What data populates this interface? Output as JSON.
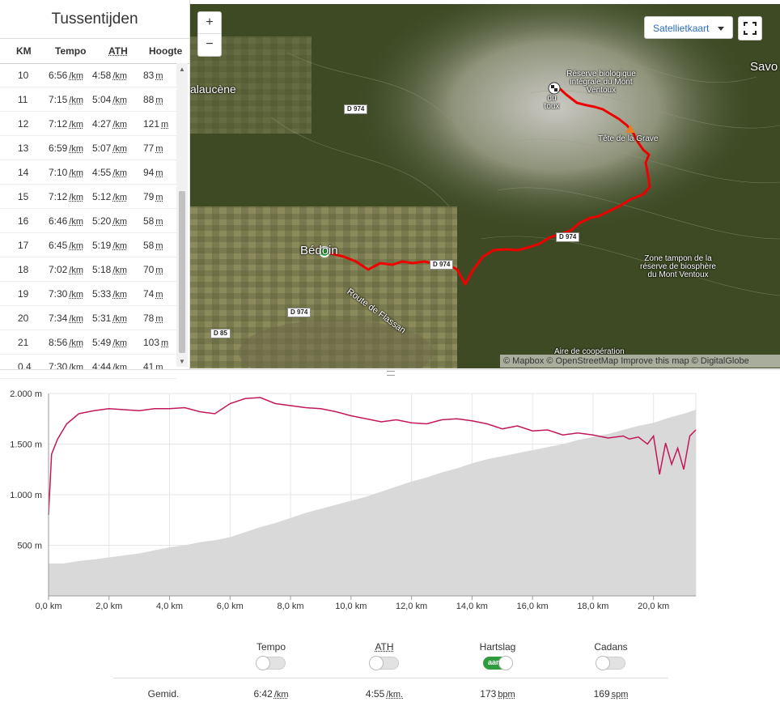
{
  "splits": {
    "title": "Tussentijden",
    "headers": {
      "km": "KM",
      "tempo": "Tempo",
      "ath": "ATH",
      "hoogte": "Hoogte"
    },
    "rows": [
      {
        "km": "10",
        "tempo": "6:56",
        "ath": "4:58",
        "hoogte": "83"
      },
      {
        "km": "11",
        "tempo": "7:15",
        "ath": "5:04",
        "hoogte": "88"
      },
      {
        "km": "12",
        "tempo": "7:12",
        "ath": "4:27",
        "hoogte": "121"
      },
      {
        "km": "13",
        "tempo": "6:59",
        "ath": "5:07",
        "hoogte": "77"
      },
      {
        "km": "14",
        "tempo": "7:10",
        "ath": "4:55",
        "hoogte": "94"
      },
      {
        "km": "15",
        "tempo": "7:12",
        "ath": "5:12",
        "hoogte": "79"
      },
      {
        "km": "16",
        "tempo": "6:46",
        "ath": "5:20",
        "hoogte": "58"
      },
      {
        "km": "17",
        "tempo": "6:45",
        "ath": "5:19",
        "hoogte": "58"
      },
      {
        "km": "18",
        "tempo": "7:02",
        "ath": "5:18",
        "hoogte": "70"
      },
      {
        "km": "19",
        "tempo": "7:30",
        "ath": "5:33",
        "hoogte": "74"
      },
      {
        "km": "20",
        "tempo": "7:34",
        "ath": "5:31",
        "hoogte": "78"
      },
      {
        "km": "21",
        "tempo": "8:56",
        "ath": "5:49",
        "hoogte": "103"
      },
      {
        "km": "0,4",
        "tempo": "7:30",
        "ath": "4:44",
        "hoogte": "41"
      }
    ],
    "pace_unit": "/km",
    "height_unit": "m"
  },
  "map": {
    "zoom_in": "+",
    "zoom_out": "−",
    "layer_label": "Satellietkaart",
    "attribution": "© Mapbox © OpenStreetMap Improve this map © DigitalGlobe",
    "places": {
      "malaucene": "alaucène",
      "bedoin": "Bédoin",
      "savoillan": "Savo",
      "reserve_biologique": "Réserve biologique intégrale du Mont Ventoux",
      "tete_grave": "Tête de la Grave",
      "zone_tampon": "Zone tampon de la réserve de biosphère du Mont Ventoux",
      "route_flassan": "Route de Flassan",
      "aire_cooperation": "Aire de coopération",
      "du_toux": "du toux"
    },
    "roads": [
      "D 974",
      "D 974",
      "D 974",
      "D 974",
      "D 85"
    ]
  },
  "chart_data": {
    "type": "line",
    "xlabel": "",
    "ylabel": "",
    "xlim": [
      0,
      21.4
    ],
    "ylim": [
      0,
      2000
    ],
    "x_ticks": [
      "0,0 km",
      "2,0 km",
      "4,0 km",
      "6,0 km",
      "8,0 km",
      "10,0 km",
      "12,0 km",
      "14,0 km",
      "16,0 km",
      "18,0 km",
      "20,0 km"
    ],
    "y_ticks": [
      "500 m",
      "1.000 m",
      "1.500 m",
      "2.000 m"
    ],
    "grid": true,
    "series": [
      {
        "kind": "area",
        "color": "#d9d9d9",
        "x": [
          0,
          0.5,
          1,
          1.5,
          2,
          2.5,
          3,
          3.5,
          4,
          4.5,
          5,
          5.5,
          6,
          6.5,
          7,
          7.5,
          8,
          8.5,
          9,
          9.5,
          10,
          10.5,
          11,
          11.5,
          12,
          12.5,
          13,
          13.5,
          14,
          14.5,
          15,
          15.5,
          16,
          16.5,
          17,
          17.5,
          18,
          18.5,
          19,
          19.5,
          20,
          20.5,
          21,
          21.4
        ],
        "values": [
          320,
          320,
          345,
          360,
          380,
          400,
          420,
          450,
          480,
          500,
          530,
          550,
          580,
          630,
          680,
          720,
          770,
          820,
          860,
          900,
          940,
          980,
          1030,
          1080,
          1130,
          1170,
          1220,
          1260,
          1310,
          1350,
          1380,
          1410,
          1440,
          1470,
          1500,
          1540,
          1570,
          1600,
          1640,
          1680,
          1710,
          1760,
          1800,
          1840
        ]
      },
      {
        "kind": "line",
        "color": "#c2185b",
        "x": [
          0,
          0.1,
          0.3,
          0.6,
          1,
          1.5,
          2,
          2.5,
          3,
          3.5,
          4,
          4.5,
          5,
          5.5,
          6,
          6.5,
          7,
          7.5,
          8,
          8.5,
          9,
          9.5,
          10,
          10.5,
          11,
          11.5,
          12,
          12.5,
          13,
          13.5,
          14,
          14.5,
          15,
          15.5,
          16,
          16.5,
          17,
          17.5,
          18,
          18.5,
          19,
          19.2,
          19.5,
          19.8,
          20,
          20.2,
          20.4,
          20.6,
          20.8,
          21,
          21.2,
          21.4
        ],
        "values": [
          800,
          1400,
          1550,
          1700,
          1800,
          1830,
          1850,
          1840,
          1830,
          1850,
          1850,
          1860,
          1820,
          1800,
          1900,
          1950,
          1960,
          1900,
          1880,
          1860,
          1850,
          1820,
          1780,
          1750,
          1720,
          1740,
          1710,
          1700,
          1740,
          1750,
          1730,
          1700,
          1650,
          1680,
          1630,
          1640,
          1590,
          1610,
          1590,
          1560,
          1580,
          1550,
          1570,
          1500,
          1580,
          1200,
          1510,
          1300,
          1460,
          1250,
          1580,
          1640
        ]
      }
    ]
  },
  "stats": {
    "avg_label": "Gemid.",
    "columns": [
      {
        "header": "Tempo",
        "header_abbr": false,
        "toggle": false,
        "value": "6:42",
        "unit": "/km"
      },
      {
        "header": "ATH",
        "header_abbr": true,
        "toggle": false,
        "value": "4:55",
        "unit": "/km."
      },
      {
        "header": "Hartslag",
        "header_abbr": false,
        "toggle": true,
        "toggle_label": "aan",
        "value": "173",
        "unit": "bpm"
      },
      {
        "header": "Cadans",
        "header_abbr": false,
        "toggle": false,
        "value": "169",
        "unit": "spm"
      }
    ]
  }
}
